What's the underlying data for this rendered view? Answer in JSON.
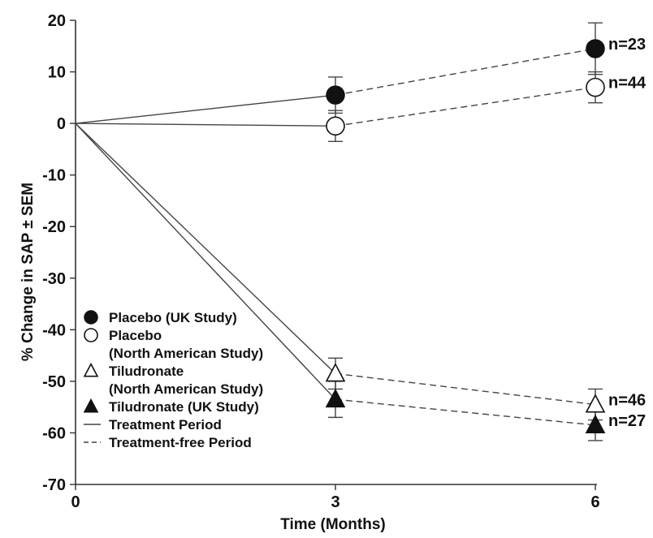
{
  "chart_data": {
    "type": "line",
    "xlabel": "Time (Months)",
    "ylabel": "% Change in SAP ± SEM",
    "x": [
      0,
      3,
      6
    ],
    "xticks": [
      "0",
      "3",
      "6"
    ],
    "xlim": [
      0,
      6
    ],
    "ylim": [
      -70,
      20
    ],
    "yticks": [
      "20",
      "10",
      "0",
      "-10",
      "-20",
      "-30",
      "-40",
      "-50",
      "-60",
      "-70"
    ],
    "grid": false,
    "legend_position": "bottom-left",
    "series": [
      {
        "name": "Placebo (UK Study)",
        "marker": "filled-circle",
        "values": [
          0,
          5.5,
          14.5
        ],
        "sem": [
          0,
          3.5,
          5.0
        ],
        "n_label": "n=23"
      },
      {
        "name": "Placebo",
        "name_line2": "(North American Study)",
        "marker": "open-circle",
        "values": [
          0,
          -0.5,
          7.0
        ],
        "sem": [
          0,
          3.0,
          3.0
        ],
        "n_label": "n=44"
      },
      {
        "name": "Tiludronate",
        "name_line2": "(North American Study)",
        "marker": "open-triangle",
        "values": [
          0,
          -48.5,
          -54.5
        ],
        "sem": [
          0,
          3.0,
          3.0
        ],
        "n_label": "n=46"
      },
      {
        "name": "Tiludronate (UK Study)",
        "marker": "filled-triangle",
        "values": [
          0,
          -53.5,
          -58.5
        ],
        "sem": [
          0,
          3.5,
          3.0
        ],
        "n_label": "n=27"
      }
    ],
    "line_styles": [
      {
        "name": "Treatment Period",
        "style": "solid"
      },
      {
        "name": "Treatment-free Period",
        "style": "dashed"
      }
    ]
  }
}
